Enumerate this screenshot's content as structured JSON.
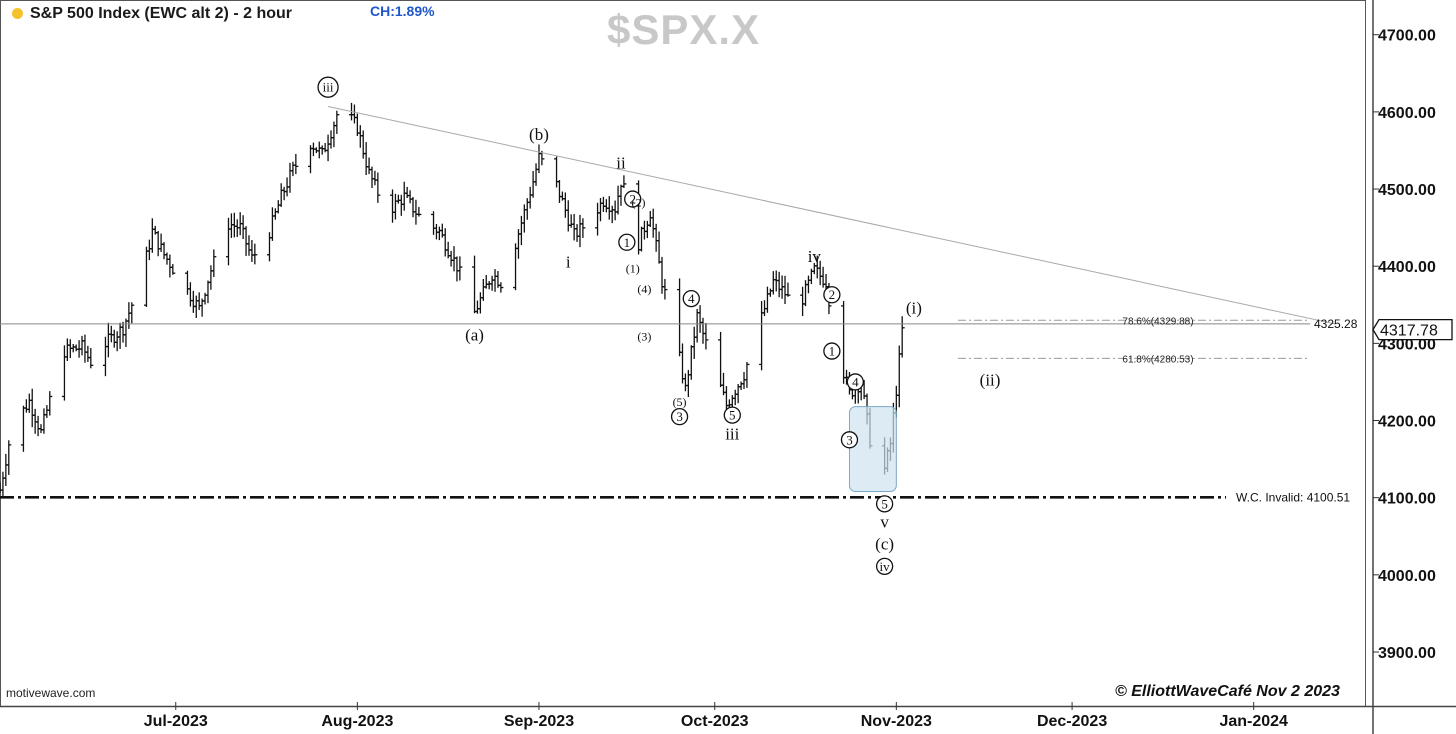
{
  "header": {
    "title": "S&P 500 Index (EWC alt 2) - 2 hour",
    "change": "CH:1.89%",
    "ticker": "$SPX.X",
    "status_dot_color": "#f4c22b"
  },
  "footer": {
    "source": "motivewave.com",
    "copyright": "© ElliottWaveCafé Nov 2 2023"
  },
  "chart_data": {
    "type": "bar",
    "subtype": "ohlc",
    "title": "S&P 500 Index (EWC alt 2) - 2 hour",
    "y_axis": {
      "position": "right",
      "range": [
        3830,
        4745
      ],
      "ticks": [
        3900,
        4000,
        4100,
        4200,
        4300,
        4400,
        4500,
        4600,
        4700
      ],
      "tick_labels": [
        "3900.00",
        "4000.00",
        "4100.00",
        "4200.00",
        "4300.00",
        "4400.00",
        "4500.00",
        "4600.00",
        "4700.00"
      ]
    },
    "x_axis": {
      "range": [
        "2023-06-01",
        "2024-01-20"
      ],
      "ticks": [
        "2023-07-01",
        "2023-08-01",
        "2023-09-01",
        "2023-10-01",
        "2023-11-01",
        "2023-12-01",
        "2024-01-01"
      ],
      "tick_labels": [
        "Jul-2023",
        "Aug-2023",
        "Sep-2023",
        "Oct-2023",
        "Nov-2023",
        "Dec-2023",
        "Jan-2024"
      ]
    },
    "last_price": {
      "value": 4317.78,
      "label": "4317.78"
    },
    "price_path": [
      [
        "2023-06-01",
        4110
      ],
      [
        "2023-06-03",
        4190
      ],
      [
        "2023-06-06",
        4225
      ],
      [
        "2023-06-08",
        4185
      ],
      [
        "2023-06-10",
        4240
      ],
      [
        "2023-06-12",
        4290
      ],
      [
        "2023-06-15",
        4295
      ],
      [
        "2023-06-17",
        4270
      ],
      [
        "2023-06-19",
        4300
      ],
      [
        "2023-06-22",
        4320
      ],
      [
        "2023-06-25",
        4380
      ],
      [
        "2023-06-27",
        4445
      ],
      [
        "2023-06-29",
        4415
      ],
      [
        "2023-07-02",
        4380
      ],
      [
        "2023-07-05",
        4345
      ],
      [
        "2023-07-07",
        4395
      ],
      [
        "2023-07-10",
        4455
      ],
      [
        "2023-07-12",
        4450
      ],
      [
        "2023-07-14",
        4410
      ],
      [
        "2023-07-17",
        4445
      ],
      [
        "2023-07-19",
        4490
      ],
      [
        "2023-07-21",
        4525
      ],
      [
        "2023-07-24",
        4560
      ],
      [
        "2023-07-26",
        4545
      ],
      [
        "2023-07-28",
        4585
      ],
      [
        "2023-07-29",
        4608
      ],
      [
        "2023-08-01",
        4580
      ],
      [
        "2023-08-03",
        4520
      ],
      [
        "2023-08-06",
        4470
      ],
      [
        "2023-08-09",
        4490
      ],
      [
        "2023-08-12",
        4460
      ],
      [
        "2023-08-15",
        4445
      ],
      [
        "2023-08-18",
        4400
      ],
      [
        "2023-08-21",
        4340
      ],
      [
        "2023-08-24",
        4390
      ],
      [
        "2023-08-26",
        4375
      ],
      [
        "2023-08-28",
        4430
      ],
      [
        "2023-08-31",
        4510
      ],
      [
        "2023-09-01",
        4541
      ],
      [
        "2023-09-04",
        4505
      ],
      [
        "2023-09-07",
        4440
      ],
      [
        "2023-09-09",
        4455
      ],
      [
        "2023-09-12",
        4485
      ],
      [
        "2023-09-14",
        4475
      ],
      [
        "2023-09-15",
        4510
      ],
      [
        "2023-09-17",
        4470
      ],
      [
        "2023-09-18",
        4430
      ],
      [
        "2023-09-20",
        4470
      ],
      [
        "2023-09-22",
        4380
      ],
      [
        "2023-09-24",
        4320
      ],
      [
        "2023-09-26",
        4240
      ],
      [
        "2023-09-28",
        4335
      ],
      [
        "2023-10-01",
        4265
      ],
      [
        "2023-10-03",
        4220
      ],
      [
        "2023-10-06",
        4260
      ],
      [
        "2023-10-08",
        4310
      ],
      [
        "2023-10-11",
        4380
      ],
      [
        "2023-10-13",
        4365
      ],
      [
        "2023-10-15",
        4340
      ],
      [
        "2023-10-18",
        4395
      ],
      [
        "2023-10-20",
        4380
      ],
      [
        "2023-10-22",
        4290
      ],
      [
        "2023-10-24",
        4235
      ],
      [
        "2023-10-26",
        4250
      ],
      [
        "2023-10-28",
        4150
      ],
      [
        "2023-10-29",
        4103
      ],
      [
        "2023-10-31",
        4170
      ],
      [
        "2023-11-01",
        4240
      ],
      [
        "2023-11-02",
        4317
      ]
    ],
    "horizontal_lines": [
      {
        "value": 4325.28,
        "label": "4325.28",
        "style": "solid",
        "color": "#888888"
      },
      {
        "value": 4100.51,
        "label": "W.C. Invalid: 4100.51",
        "style": "dash-dot",
        "color": "#111111"
      }
    ],
    "fibonacci_levels": [
      {
        "value": 4329.88,
        "label": "78.6%(4329.88)"
      },
      {
        "value": 4280.53,
        "label": "61.8%(4280.53)"
      }
    ],
    "trendline": {
      "from": [
        "2023-07-27",
        4607
      ],
      "to": [
        "2024-01-15",
        4325
      ],
      "color": "#a8a8a8"
    },
    "highlight_box": {
      "x": [
        "2023-10-24",
        "2023-11-01"
      ],
      "y": [
        4108,
        4218
      ],
      "color": "#cde2f0"
    },
    "wave_labels": [
      {
        "text": "iii",
        "x": "2023-07-27",
        "y": 4632,
        "circled": true
      },
      {
        "text": "(a)",
        "x": "2023-08-21",
        "y": 4310,
        "circled": false
      },
      {
        "text": "(b)",
        "x": "2023-09-01",
        "y": 4570,
        "circled": false
      },
      {
        "text": "ii",
        "x": "2023-09-15",
        "y": 4533,
        "circled": false
      },
      {
        "text": "i",
        "x": "2023-09-06",
        "y": 4405,
        "circled": false
      },
      {
        "text": "2",
        "x": "2023-09-17",
        "y": 4487,
        "circled": true
      },
      {
        "text": "(2)",
        "x": "2023-09-18",
        "y": 4484,
        "circled": false
      },
      {
        "text": "1",
        "x": "2023-09-16",
        "y": 4431,
        "circled": true
      },
      {
        "text": "(1)",
        "x": "2023-09-17",
        "y": 4398,
        "circled": false
      },
      {
        "text": "(4)",
        "x": "2023-09-19",
        "y": 4372,
        "circled": false
      },
      {
        "text": "(3)",
        "x": "2023-09-19",
        "y": 4310,
        "circled": false
      },
      {
        "text": "4",
        "x": "2023-09-27",
        "y": 4358,
        "circled": true
      },
      {
        "text": "(5)",
        "x": "2023-09-25",
        "y": 4225,
        "circled": false
      },
      {
        "text": "3",
        "x": "2023-09-25",
        "y": 4205,
        "circled": true
      },
      {
        "text": "5",
        "x": "2023-10-04",
        "y": 4207,
        "circled": true
      },
      {
        "text": "iii",
        "x": "2023-10-04",
        "y": 4182,
        "circled": false
      },
      {
        "text": "iv",
        "x": "2023-10-18",
        "y": 4412,
        "circled": false
      },
      {
        "text": "2",
        "x": "2023-10-21",
        "y": 4363,
        "circled": true
      },
      {
        "text": "1",
        "x": "2023-10-21",
        "y": 4290,
        "circled": true
      },
      {
        "text": "4",
        "x": "2023-10-25",
        "y": 4250,
        "circled": true
      },
      {
        "text": "3",
        "x": "2023-10-24",
        "y": 4175,
        "circled": true
      },
      {
        "text": "(i)",
        "x": "2023-11-04",
        "y": 4345,
        "circled": false
      },
      {
        "text": "(ii)",
        "x": "2023-11-17",
        "y": 4252,
        "circled": false
      },
      {
        "text": "5",
        "x": "2023-10-30",
        "y": 4092,
        "circled": true
      },
      {
        "text": "v",
        "x": "2023-10-30",
        "y": 4068,
        "circled": false
      },
      {
        "text": "(c)",
        "x": "2023-10-30",
        "y": 4039,
        "circled": false
      },
      {
        "text": "iv",
        "x": "2023-10-30",
        "y": 4011,
        "circled": true
      }
    ]
  }
}
